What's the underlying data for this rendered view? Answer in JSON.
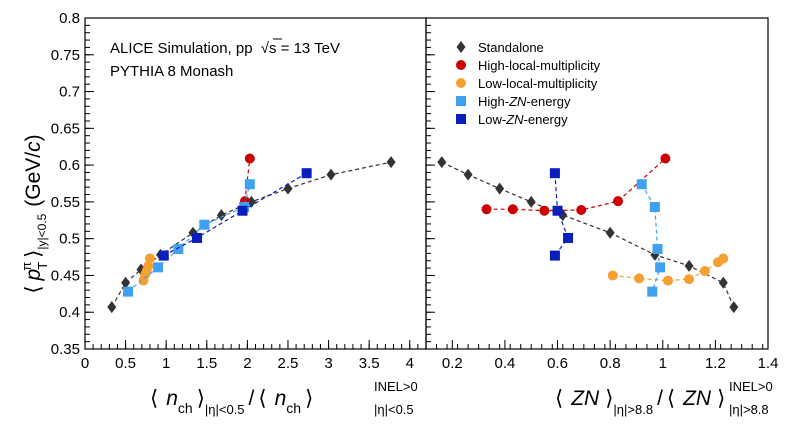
{
  "figure": {
    "annotation_line1_prefix": "ALICE Simulation, pp",
    "annotation_sqrt": "√",
    "annotation_s": "s",
    "annotation_energy": " = 13 TeV",
    "annotation_line2": "PYTHIA 8 Monash",
    "ylabel": {
      "bracket_open": "⟨",
      "p": "p",
      "sup": "π",
      "sub": "T",
      "bracket_close": "⟩",
      "range": "|y|<0.5",
      "unit_open": "(GeV/",
      "unit_c": "c",
      "unit_close": ")"
    },
    "xlabel_left": {
      "open": "⟨",
      "var": "n",
      "var_sub": "ch",
      "close": "⟩",
      "range": "|η|<0.5",
      "slash": "/",
      "open2": "⟨",
      "var2": "n",
      "var2_sub": "ch",
      "close2": "⟩",
      "sup2": "INEL>0",
      "range2": "|η|<0.5"
    },
    "xlabel_right": {
      "open": "⟨",
      "var": "ZN",
      "close": "⟩",
      "range": "|η|>8.8",
      "slash": "/",
      "open2": "⟨",
      "var2": "ZN",
      "close2": "⟩",
      "sup2": "INEL>0",
      "range2": "|η|>8.8"
    },
    "legend": [
      {
        "label_pre": "Standalone",
        "label_it": "",
        "label_post": "",
        "color": "#333333",
        "marker": "diamond"
      },
      {
        "label_pre": "High-local-multiplicity",
        "label_it": "",
        "label_post": "",
        "color": "#cc0000",
        "marker": "circle"
      },
      {
        "label_pre": "Low-local-multiplicity",
        "label_it": "",
        "label_post": "",
        "color": "#f5a030",
        "marker": "circle"
      },
      {
        "label_pre": "High-",
        "label_it": "ZN",
        "label_post": "-energy",
        "color": "#3fa0f0",
        "marker": "square"
      },
      {
        "label_pre": "Low-",
        "label_it": "ZN",
        "label_post": "-energy",
        "color": "#0a1ebe",
        "marker": "square"
      }
    ]
  },
  "chart_data": [
    {
      "type": "scatter",
      "panel": "left",
      "ylim": [
        0.35,
        0.8
      ],
      "xlim": [
        0,
        4.2
      ],
      "yticks": [
        "0.35",
        "0.4",
        "0.45",
        "0.5",
        "0.55",
        "0.6",
        "0.65",
        "0.7",
        "0.75",
        "0.8"
      ],
      "xticks": [
        "0",
        "0.5",
        "1",
        "1.5",
        "2",
        "2.5",
        "3",
        "3.5",
        "4"
      ],
      "series": [
        {
          "name": "Standalone",
          "marker": "diamond",
          "color": "#333333",
          "x": [
            0.33,
            0.5,
            0.69,
            0.93,
            1.33,
            1.68,
            2.05,
            2.5,
            3.03,
            3.77
          ],
          "y": [
            0.407,
            0.44,
            0.458,
            0.478,
            0.508,
            0.532,
            0.55,
            0.568,
            0.587,
            0.604
          ]
        },
        {
          "name": "High-local-multiplicity",
          "marker": "circle",
          "color": "#cc0000",
          "x": [
            1.97,
            2.03
          ],
          "y": [
            0.551,
            0.609
          ]
        },
        {
          "name": "Low-local-multiplicity",
          "marker": "circle",
          "color": "#f5a030",
          "x": [
            0.72,
            0.74,
            0.76,
            0.78,
            0.8
          ],
          "y": [
            0.443,
            0.451,
            0.456,
            0.463,
            0.473
          ]
        },
        {
          "name": "High-ZN-energy",
          "marker": "square",
          "color": "#3fa0f0",
          "x": [
            0.53,
            0.9,
            1.15,
            1.47,
            1.96,
            2.03
          ],
          "y": [
            0.428,
            0.461,
            0.486,
            0.519,
            0.543,
            0.574
          ]
        },
        {
          "name": "Low-ZN-energy",
          "marker": "square",
          "color": "#0a1ebe",
          "x": [
            0.97,
            1.38,
            1.94,
            2.73
          ],
          "y": [
            0.477,
            0.501,
            0.538,
            0.589
          ]
        }
      ]
    },
    {
      "type": "scatter",
      "panel": "right",
      "ylim": [
        0.35,
        0.8
      ],
      "xlim": [
        0.1,
        1.4
      ],
      "xticks": [
        "0.2",
        "0.4",
        "0.6",
        "0.8",
        "1",
        "1.2",
        "1.4"
      ],
      "series": [
        {
          "name": "Standalone",
          "marker": "diamond",
          "color": "#333333",
          "x": [
            0.16,
            0.26,
            0.38,
            0.5,
            0.62,
            0.8,
            0.97,
            1.1,
            1.23,
            1.27
          ],
          "y": [
            0.604,
            0.587,
            0.568,
            0.55,
            0.532,
            0.508,
            0.478,
            0.463,
            0.44,
            0.407
          ]
        },
        {
          "name": "High-local-multiplicity",
          "marker": "circle",
          "color": "#cc0000",
          "x": [
            0.33,
            0.43,
            0.55,
            0.69,
            0.83,
            1.01
          ],
          "y": [
            0.54,
            0.54,
            0.538,
            0.539,
            0.551,
            0.609
          ]
        },
        {
          "name": "Low-local-multiplicity",
          "marker": "circle",
          "color": "#f5a030",
          "x": [
            0.81,
            0.91,
            1.02,
            1.1,
            1.16,
            1.21,
            1.23
          ],
          "y": [
            0.45,
            0.446,
            0.443,
            0.445,
            0.456,
            0.468,
            0.473
          ]
        },
        {
          "name": "High-ZN-energy",
          "marker": "square",
          "color": "#3fa0f0",
          "x": [
            0.92,
            0.97,
            0.98,
            0.99,
            0.96
          ],
          "y": [
            0.574,
            0.543,
            0.486,
            0.461,
            0.428
          ]
        },
        {
          "name": "Low-ZN-energy",
          "marker": "square",
          "color": "#0a1ebe",
          "x": [
            0.59,
            0.6,
            0.64,
            0.59
          ],
          "y": [
            0.589,
            0.538,
            0.501,
            0.477
          ]
        }
      ]
    }
  ]
}
